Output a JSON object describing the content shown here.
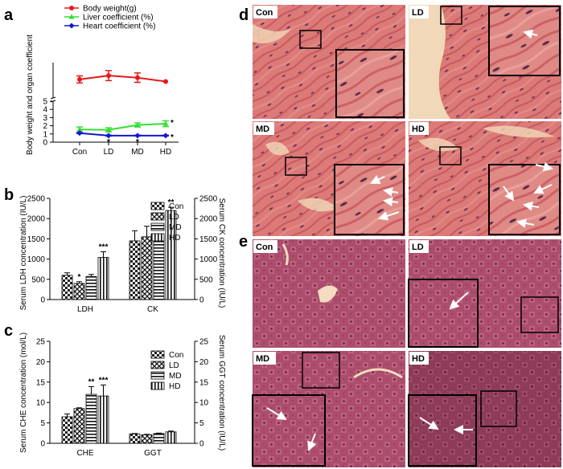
{
  "panels": {
    "a": "a",
    "b": "b",
    "c": "c",
    "d": "d",
    "e": "e"
  },
  "chart_data": [
    {
      "id": "a",
      "type": "line",
      "categories": [
        "Con",
        "LD",
        "MD",
        "HD"
      ],
      "ylabel": "Body weight and organ coefficient",
      "ylim_lower": [
        0,
        5
      ],
      "ylim_upper": [
        100,
        220
      ],
      "yticks_lower": [
        "0",
        "1",
        "2",
        "3",
        "4",
        "5"
      ],
      "series": [
        {
          "name": "Body weight(g)",
          "color": "#e41a1c",
          "values": [
            163,
            176,
            169,
            156
          ],
          "errors": [
            12,
            17,
            16,
            0
          ],
          "stars": [
            "",
            "",
            "",
            ""
          ]
        },
        {
          "name": "Liver coefficient (%)",
          "color": "#33dd33",
          "values": [
            1.55,
            1.5,
            2.1,
            2.25
          ],
          "errors": [
            0.3,
            0.25,
            0.25,
            0.35
          ],
          "stars": [
            "",
            "",
            "",
            "*"
          ]
        },
        {
          "name": "Heart coefficient (%)",
          "color": "#1414d6",
          "values": [
            1.1,
            0.8,
            0.8,
            0.8
          ],
          "errors": [
            0.05,
            0.05,
            0.05,
            0.05
          ],
          "stars": [
            "",
            "*",
            "*",
            "*"
          ]
        }
      ]
    },
    {
      "id": "b",
      "type": "bar",
      "groups": [
        "LDH",
        "CK"
      ],
      "series_names": [
        "Con",
        "LD",
        "MD",
        "HD"
      ],
      "left_ylabel": "Serum LDH concentration (IU/L)",
      "right_ylabel": "Serum CK concentration (IU/L)",
      "left_ylim": [
        0,
        2500
      ],
      "right_ylim": [
        0,
        2500
      ],
      "left_yticks": [
        "0",
        "500",
        "1000",
        "1500",
        "2000",
        "2500"
      ],
      "right_yticks": [
        "0",
        "500",
        "1000",
        "1500",
        "2000",
        "2500"
      ],
      "values": [
        [
          600,
          400,
          570,
          1040
        ],
        [
          1450,
          1550,
          1560,
          2200
        ]
      ],
      "errors": [
        [
          60,
          40,
          50,
          140
        ],
        [
          250,
          260,
          30,
          80
        ]
      ],
      "stars": [
        [
          "",
          "*",
          "",
          "***"
        ],
        [
          "",
          "",
          "",
          "**"
        ]
      ]
    },
    {
      "id": "c",
      "type": "bar",
      "groups": [
        "CHE",
        "GGT"
      ],
      "series_names": [
        "Con",
        "LD",
        "MD",
        "HD"
      ],
      "left_ylabel": "Serum CHE concentration (mol/L)",
      "right_ylabel": "Serum GGT concentration (IU/L)",
      "left_ylim": [
        0,
        25
      ],
      "right_ylim": [
        0,
        25
      ],
      "left_yticks": [
        "0",
        "5",
        "10",
        "15",
        "20",
        "25"
      ],
      "right_yticks": [
        "0",
        "5",
        "10",
        "15",
        "20",
        "25"
      ],
      "values": [
        [
          6.5,
          8.5,
          12,
          11.6
        ],
        [
          2.3,
          2.1,
          2.4,
          2.8
        ]
      ],
      "errors": [
        [
          0.7,
          0.2,
          1.9,
          2.7
        ],
        [
          0.1,
          0.1,
          0.1,
          0.2
        ]
      ],
      "stars": [
        [
          "",
          "",
          "**",
          "***"
        ],
        [
          "",
          "",
          "",
          ""
        ]
      ]
    }
  ],
  "micrographs": {
    "d": [
      "Con",
      "LD",
      "MD",
      "HD"
    ],
    "e": [
      "Con",
      "LD",
      "MD",
      "HD"
    ]
  },
  "colors": {
    "heart_bg": "#dd7a78",
    "heart_fiber": "#c85a5e",
    "heart_gap": "#f1d8b8",
    "liver_bg": "#a84b6a",
    "liver_dot": "#7a2c50"
  }
}
